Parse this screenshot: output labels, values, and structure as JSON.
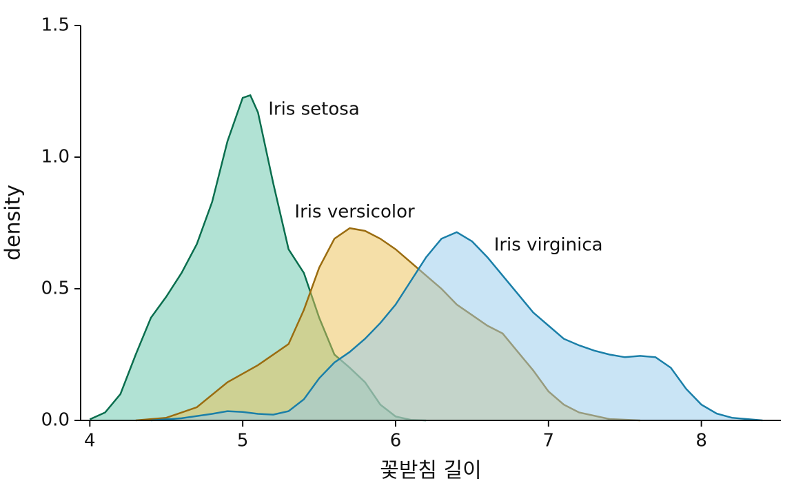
{
  "chart_data": {
    "type": "density",
    "xlabel": "꽃받침 길이",
    "ylabel": "density",
    "xlim": [
      3.94,
      8.52
    ],
    "xticks": [
      4,
      5,
      6,
      7,
      8
    ],
    "ylim": [
      0,
      1.5
    ],
    "yticks": [
      {
        "value": 0,
        "label": "0.0"
      },
      0.5,
      {
        "value": 1,
        "label": "1.0"
      },
      1.5
    ],
    "grid": false,
    "series": [
      {
        "name": "Iris setosa",
        "color": "#0a6e4e",
        "fill": "#63c6a9",
        "x": [
          4.0,
          4.1,
          4.2,
          4.3,
          4.4,
          4.5,
          4.6,
          4.7,
          4.8,
          4.9,
          5.0,
          5.05,
          5.1,
          5.2,
          5.3,
          5.4,
          5.5,
          5.6,
          5.7,
          5.8,
          5.9,
          6.0,
          6.1,
          6.2
        ],
        "values": [
          0.004,
          0.03,
          0.1,
          0.25,
          0.39,
          0.47,
          0.56,
          0.67,
          0.83,
          1.06,
          1.225,
          1.235,
          1.17,
          0.9,
          0.65,
          0.56,
          0.39,
          0.25,
          0.2,
          0.145,
          0.06,
          0.015,
          0.002,
          0
        ]
      },
      {
        "name": "Iris versicolor",
        "color": "#9a6c10",
        "fill": "#ecbf52",
        "x": [
          4.3,
          4.5,
          4.7,
          4.9,
          5.1,
          5.3,
          5.4,
          5.5,
          5.6,
          5.7,
          5.8,
          5.9,
          6.0,
          6.1,
          6.2,
          6.3,
          6.4,
          6.5,
          6.6,
          6.7,
          6.8,
          6.9,
          7.0,
          7.1,
          7.2,
          7.4,
          7.6
        ],
        "values": [
          0,
          0.01,
          0.05,
          0.145,
          0.21,
          0.29,
          0.42,
          0.58,
          0.69,
          0.73,
          0.72,
          0.69,
          0.65,
          0.6,
          0.55,
          0.5,
          0.44,
          0.4,
          0.36,
          0.33,
          0.26,
          0.19,
          0.11,
          0.06,
          0.03,
          0.005,
          0
        ]
      },
      {
        "name": "Iris virginica",
        "color": "#1a7fa8",
        "fill": "#93c9eb",
        "x": [
          4.4,
          4.6,
          4.8,
          4.9,
          5.0,
          5.1,
          5.2,
          5.3,
          5.4,
          5.5,
          5.6,
          5.7,
          5.8,
          5.9,
          6.0,
          6.1,
          6.2,
          6.3,
          6.4,
          6.5,
          6.6,
          6.7,
          6.8,
          6.9,
          7.0,
          7.1,
          7.2,
          7.3,
          7.4,
          7.5,
          7.6,
          7.7,
          7.8,
          7.9,
          8.0,
          8.1,
          8.2,
          8.4
        ],
        "values": [
          0,
          0.008,
          0.025,
          0.035,
          0.032,
          0.025,
          0.022,
          0.035,
          0.08,
          0.16,
          0.22,
          0.26,
          0.31,
          0.37,
          0.44,
          0.53,
          0.62,
          0.69,
          0.715,
          0.68,
          0.62,
          0.55,
          0.48,
          0.41,
          0.36,
          0.31,
          0.285,
          0.265,
          0.25,
          0.24,
          0.245,
          0.24,
          0.2,
          0.12,
          0.06,
          0.026,
          0.01,
          0
        ]
      }
    ]
  }
}
